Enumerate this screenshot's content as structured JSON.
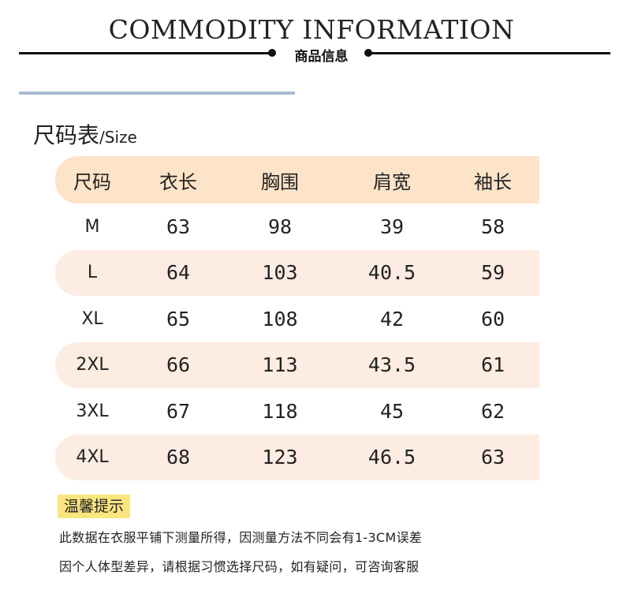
{
  "header": {
    "title": "COMMODITY INFORMATION",
    "subtitle": "商品信息"
  },
  "size_table": {
    "heading": "尺码表",
    "heading_en": "/Size",
    "columns": [
      "尺码",
      "衣长",
      "胸围",
      "肩宽",
      "袖长"
    ],
    "rows": [
      [
        "M",
        "63",
        "98",
        "39",
        "58"
      ],
      [
        "L",
        "64",
        "103",
        "40.5",
        "59"
      ],
      [
        "XL",
        "65",
        "108",
        "42",
        "60"
      ],
      [
        "2XL",
        "66",
        "113",
        "43.5",
        "61"
      ],
      [
        "3XL",
        "67",
        "118",
        "45",
        "62"
      ],
      [
        "4XL",
        "68",
        "123",
        "46.5",
        "63"
      ]
    ]
  },
  "tips": {
    "label": "温馨提示",
    "lines": [
      "此数据在衣服平铺下测量所得，因测量方法不同会有1-3CM误差",
      "因个人体型差异，请根据习惯选择尺码，如有疑问，可咨询客服"
    ]
  },
  "colors": {
    "header_row": "#fde3c8",
    "shaded_row": "#fcece2",
    "tip_highlight": "#fbe57f",
    "divider": "#a9b9d0"
  }
}
